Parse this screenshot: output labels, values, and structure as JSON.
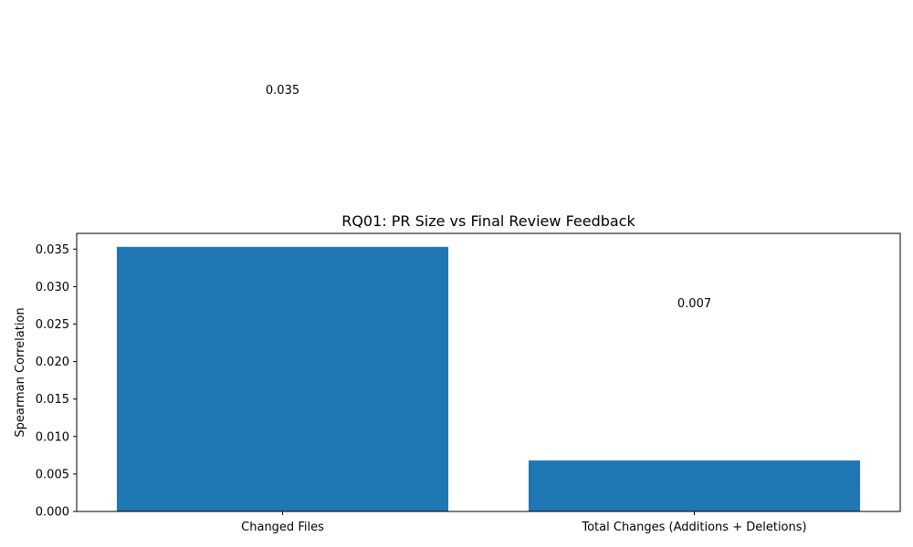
{
  "chart_data": {
    "type": "bar",
    "title": "RQ01: PR Size vs Final Review Feedback",
    "xlabel": "",
    "ylabel": "Spearman Correlation",
    "categories": [
      "Changed Files",
      "Total Changes (Additions + Deletions)"
    ],
    "values": [
      0.0353,
      0.0068
    ],
    "data_labels": [
      "0.035",
      "0.007"
    ],
    "ylim": [
      0,
      0.0371
    ],
    "yticks": [
      0.0,
      0.005,
      0.01,
      0.015,
      0.02,
      0.025,
      0.03,
      0.035
    ],
    "ytick_labels": [
      "0.000",
      "0.005",
      "0.010",
      "0.015",
      "0.020",
      "0.025",
      "0.030",
      "0.035"
    ],
    "bar_color": "#1f77b4",
    "grid": false,
    "legend": "none"
  }
}
